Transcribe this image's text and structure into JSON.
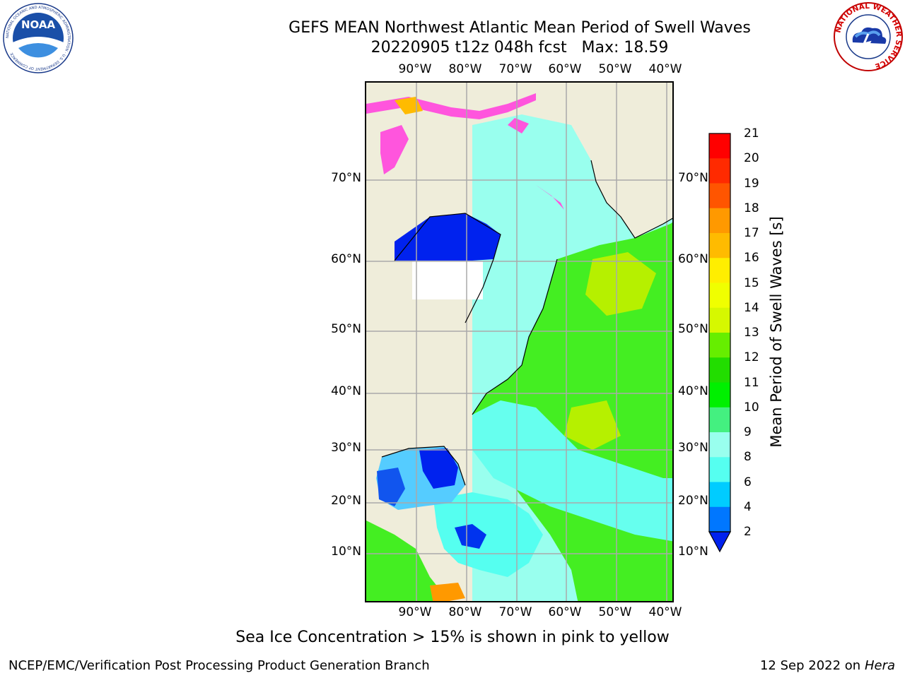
{
  "header": {
    "title_line1": "GEFS MEAN Northwest Atlantic Mean Period of Swell Waves",
    "title_line2": "20220905 t12z 048h fcst   Max: 18.59"
  },
  "axes": {
    "lon_labels": [
      "90°W",
      "80°W",
      "70°W",
      "60°W",
      "50°W",
      "40°W"
    ],
    "lat_labels": [
      "70°N",
      "60°N",
      "50°N",
      "40°N",
      "30°N",
      "20°N",
      "10°N"
    ]
  },
  "colorbar": {
    "label": "Mean Period of Swell Waves [s]",
    "ticks": [
      "21",
      "20",
      "19",
      "18",
      "17",
      "16",
      "15",
      "14",
      "13",
      "12",
      "11",
      "10",
      "9",
      "8",
      "6",
      "4",
      "2"
    ],
    "colors": [
      "#ff0000",
      "#ff2a00",
      "#ff5500",
      "#ff7700",
      "#ff9900",
      "#ffbb00",
      "#ffee00",
      "#f0ff00",
      "#d6f800",
      "#b6f000",
      "#66ee00",
      "#22dd00",
      "#00f000",
      "#44f080",
      "#99ffee",
      "#55fff0",
      "#00f6ff",
      "#00ccff",
      "#0077ff",
      "#0022ee"
    ]
  },
  "footer": {
    "note": "Sea Ice Concentration > 15% is shown in pink to yellow",
    "credit": "NCEP/EMC/Verification Post Processing Product Generation Branch",
    "date": "12 Sep 2022 on",
    "host": "Hera"
  },
  "logos": {
    "left": "NOAA",
    "left_ring": "NATIONAL OCEANIC AND ATMOSPHERIC ADMINISTRATION · U.S. DEPARTMENT OF COMMERCE",
    "right_ring": "NATIONAL WEATHER SERVICE"
  },
  "colors": {
    "land": "#efedda",
    "grid": "#aaaaaa",
    "ocean_cyan": "#99ffee",
    "ocean_green": "#44ee22",
    "ocean_blue": "#0022ee",
    "ice_pink": "#ff55dd"
  }
}
